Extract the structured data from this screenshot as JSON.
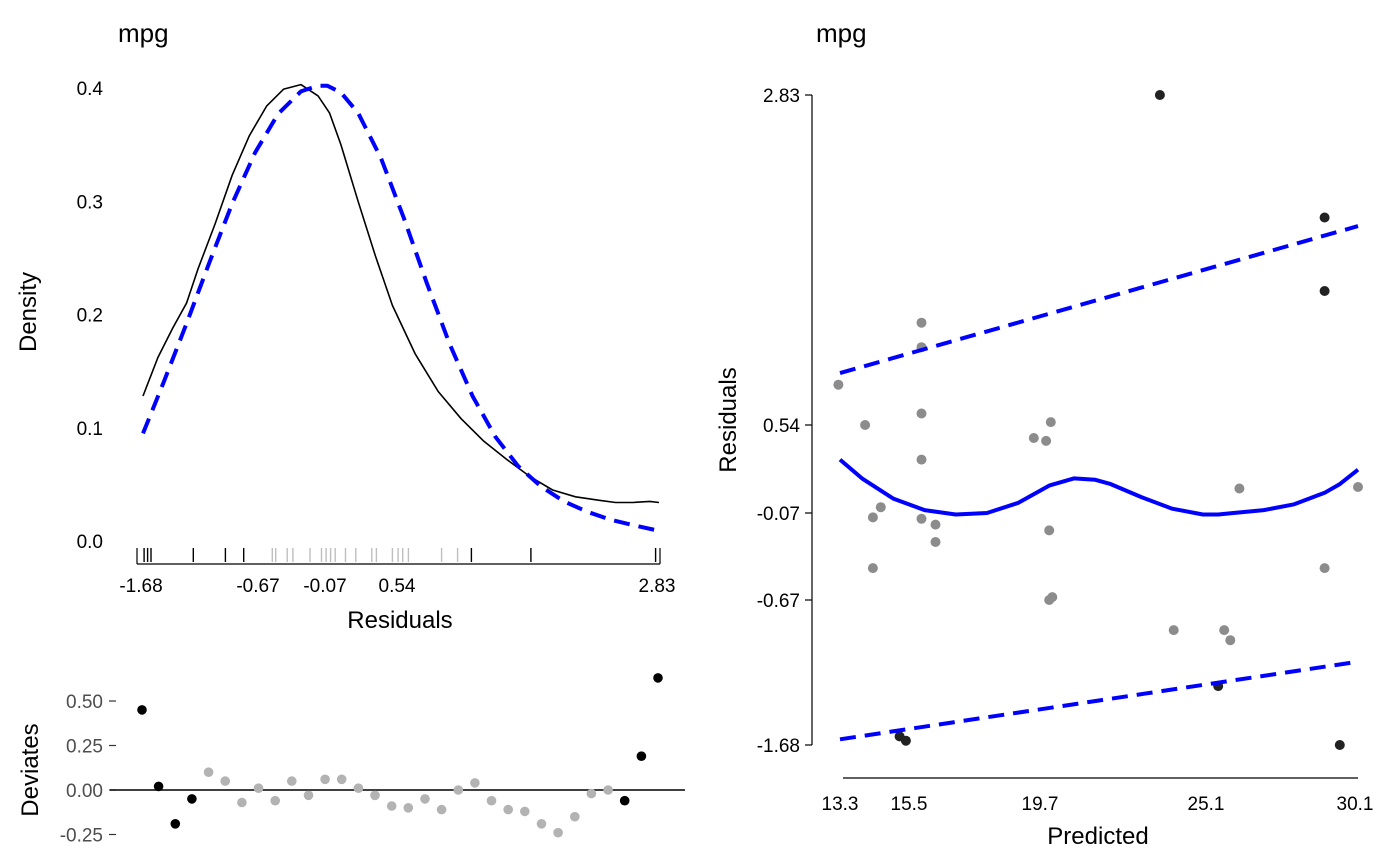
{
  "chart_data": [
    {
      "panel": "density",
      "type": "line",
      "title": "mpg",
      "xlabel": "Residuals",
      "ylabel": "Density",
      "xlim": [
        -1.68,
        2.83
      ],
      "ylim": [
        0,
        0.4
      ],
      "x_tick_labels": [
        "-1.68",
        "-0.67",
        "-0.07",
        "0.54",
        "2.83"
      ],
      "x_ticks": [
        -1.68,
        -0.67,
        -0.07,
        0.54,
        2.83
      ],
      "y_tick_labels": [
        "0.0",
        "0.1",
        "0.2",
        "0.3",
        "0.4"
      ],
      "y_ticks": [
        0.0,
        0.1,
        0.2,
        0.3,
        0.4
      ],
      "colors": {
        "kde": "#000000",
        "normal": "#0000ff",
        "rug_dark": "#000000",
        "rug_light": "#bfbfbf"
      },
      "series": [
        {
          "kind": "kde",
          "style": "solid",
          "x": [
            -1.68,
            -1.55,
            -1.42,
            -1.3,
            -1.2,
            -1.05,
            -0.9,
            -0.75,
            -0.6,
            -0.45,
            -0.3,
            -0.15,
            -0.05,
            0.05,
            0.2,
            0.35,
            0.5,
            0.7,
            0.9,
            1.1,
            1.3,
            1.5,
            1.7,
            1.9,
            2.1,
            2.3,
            2.45,
            2.6,
            2.75,
            2.83
          ],
          "y": [
            0.128,
            0.162,
            0.188,
            0.21,
            0.24,
            0.28,
            0.323,
            0.358,
            0.384,
            0.399,
            0.403,
            0.393,
            0.378,
            0.35,
            0.3,
            0.252,
            0.208,
            0.165,
            0.132,
            0.108,
            0.088,
            0.072,
            0.057,
            0.045,
            0.039,
            0.036,
            0.034,
            0.034,
            0.035,
            0.034
          ]
        },
        {
          "kind": "normal",
          "style": "dashed",
          "x": [
            -1.68,
            -1.5,
            -1.3,
            -1.1,
            -0.9,
            -0.7,
            -0.5,
            -0.3,
            -0.15,
            -0.07,
            0.05,
            0.2,
            0.4,
            0.6,
            0.8,
            1.0,
            1.2,
            1.4,
            1.6,
            1.8,
            2.0,
            2.2,
            2.4,
            2.6,
            2.83
          ],
          "y": [
            0.095,
            0.14,
            0.192,
            0.246,
            0.298,
            0.343,
            0.377,
            0.397,
            0.402,
            0.402,
            0.396,
            0.378,
            0.338,
            0.285,
            0.228,
            0.174,
            0.128,
            0.092,
            0.066,
            0.048,
            0.035,
            0.026,
            0.019,
            0.014,
            0.009
          ]
        }
      ],
      "rug": [
        {
          "x": -1.67,
          "group": "dark"
        },
        {
          "x": -1.64,
          "group": "dark"
        },
        {
          "x": -1.61,
          "group": "dark"
        },
        {
          "x": -1.24,
          "group": "dark"
        },
        {
          "x": -0.96,
          "group": "dark"
        },
        {
          "x": -0.8,
          "group": "dark"
        },
        {
          "x": -0.55,
          "group": "light"
        },
        {
          "x": -0.52,
          "group": "light"
        },
        {
          "x": -0.42,
          "group": "light"
        },
        {
          "x": -0.37,
          "group": "light"
        },
        {
          "x": -0.22,
          "group": "light"
        },
        {
          "x": -0.12,
          "group": "light"
        },
        {
          "x": -0.08,
          "group": "light"
        },
        {
          "x": -0.04,
          "group": "light"
        },
        {
          "x": 0.0,
          "group": "light"
        },
        {
          "x": 0.09,
          "group": "light"
        },
        {
          "x": 0.18,
          "group": "light"
        },
        {
          "x": 0.32,
          "group": "light"
        },
        {
          "x": 0.36,
          "group": "light"
        },
        {
          "x": 0.5,
          "group": "light"
        },
        {
          "x": 0.55,
          "group": "light"
        },
        {
          "x": 0.59,
          "group": "light"
        },
        {
          "x": 0.64,
          "group": "light"
        },
        {
          "x": 0.93,
          "group": "light"
        },
        {
          "x": 1.07,
          "group": "light"
        },
        {
          "x": 1.19,
          "group": "dark"
        },
        {
          "x": 1.71,
          "group": "dark"
        },
        {
          "x": 2.8,
          "group": "dark"
        }
      ]
    },
    {
      "panel": "residuals_vs_predicted",
      "type": "scatter",
      "title": "mpg",
      "xlabel": "Predicted",
      "ylabel": "Residuals",
      "xlim": [
        13.3,
        30.1
      ],
      "ylim": [
        -1.68,
        2.83
      ],
      "x_tick_labels": [
        "13.3",
        "15.5",
        "19.7",
        "25.1",
        "30.1"
      ],
      "x_ticks": [
        13.3,
        15.5,
        19.7,
        25.1,
        30.1
      ],
      "y_tick_labels": [
        "2.83",
        "0.54",
        "-0.07",
        "-0.67",
        "-1.68"
      ],
      "y_ticks": [
        2.83,
        0.54,
        -0.07,
        -0.67,
        -1.68
      ],
      "colors": {
        "point_dark": "#222222",
        "point_light": "#8c8c8c",
        "fit": "#0000ff",
        "bounds": "#0000ff"
      },
      "points": [
        {
          "x": 13.25,
          "y": 0.82,
          "group": "light"
        },
        {
          "x": 14.1,
          "y": 0.54,
          "group": "light"
        },
        {
          "x": 14.35,
          "y": -0.1,
          "group": "light"
        },
        {
          "x": 14.35,
          "y": -0.45,
          "group": "light"
        },
        {
          "x": 14.6,
          "y": -0.03,
          "group": "light"
        },
        {
          "x": 15.2,
          "y": -1.62,
          "group": "dark"
        },
        {
          "x": 15.4,
          "y": -1.65,
          "group": "dark"
        },
        {
          "x": 15.9,
          "y": 1.25,
          "group": "light"
        },
        {
          "x": 15.9,
          "y": 1.08,
          "group": "light"
        },
        {
          "x": 15.9,
          "y": 0.62,
          "group": "light"
        },
        {
          "x": 15.9,
          "y": 0.3,
          "group": "light"
        },
        {
          "x": 15.9,
          "y": -0.11,
          "group": "light"
        },
        {
          "x": 16.35,
          "y": -0.15,
          "group": "light"
        },
        {
          "x": 16.35,
          "y": -0.27,
          "group": "light"
        },
        {
          "x": 19.5,
          "y": 0.45,
          "group": "light"
        },
        {
          "x": 19.9,
          "y": 0.43,
          "group": "light"
        },
        {
          "x": 20.05,
          "y": 0.56,
          "group": "light"
        },
        {
          "x": 20.0,
          "y": -0.19,
          "group": "light"
        },
        {
          "x": 20.0,
          "y": -0.67,
          "group": "light"
        },
        {
          "x": 20.1,
          "y": -0.65,
          "group": "light"
        },
        {
          "x": 23.6,
          "y": 2.83,
          "group": "dark"
        },
        {
          "x": 24.05,
          "y": -0.88,
          "group": "light"
        },
        {
          "x": 25.7,
          "y": -0.88,
          "group": "light"
        },
        {
          "x": 25.9,
          "y": -0.95,
          "group": "light"
        },
        {
          "x": 25.5,
          "y": -1.27,
          "group": "dark"
        },
        {
          "x": 26.2,
          "y": 0.1,
          "group": "light"
        },
        {
          "x": 29.0,
          "y": 1.98,
          "group": "dark"
        },
        {
          "x": 29.0,
          "y": 1.47,
          "group": "dark"
        },
        {
          "x": 29.0,
          "y": -0.45,
          "group": "light"
        },
        {
          "x": 29.5,
          "y": -1.68,
          "group": "dark"
        },
        {
          "x": 30.1,
          "y": 0.11,
          "group": "light"
        }
      ],
      "fit_line": {
        "x": [
          13.3,
          14.0,
          15.0,
          16.0,
          17.0,
          18.0,
          19.0,
          20.0,
          20.8,
          21.5,
          22.0,
          23.0,
          24.0,
          25.0,
          25.5,
          26.0,
          27.0,
          28.0,
          29.0,
          29.5,
          30.1
        ],
        "y": [
          0.3,
          0.17,
          0.03,
          -0.05,
          -0.08,
          -0.07,
          0.0,
          0.12,
          0.17,
          0.16,
          0.13,
          0.04,
          -0.04,
          -0.08,
          -0.08,
          -0.07,
          -0.05,
          -0.01,
          0.07,
          0.13,
          0.23
        ]
      },
      "bounds": {
        "upper": {
          "x": [
            13.3,
            30.1
          ],
          "y": [
            0.9,
            1.92
          ]
        },
        "lower": {
          "x": [
            13.3,
            30.1
          ],
          "y": [
            -1.64,
            -1.1
          ]
        }
      }
    },
    {
      "panel": "deviates",
      "type": "scatter",
      "title": "",
      "xlabel": "",
      "ylabel": "Deviates",
      "ylim": [
        -0.3,
        0.68
      ],
      "y_tick_labels": [
        "0.50",
        "0.25",
        "0.00",
        "-0.25"
      ],
      "y_ticks": [
        0.5,
        0.25,
        0.0,
        -0.25
      ],
      "colors": {
        "point_dark": "#000000",
        "point_light": "#b3b3b3",
        "zero_line": "#000000"
      },
      "points": [
        {
          "x": 1,
          "y": 0.45,
          "group": "dark"
        },
        {
          "x": 2,
          "y": 0.02,
          "group": "dark"
        },
        {
          "x": 3,
          "y": -0.19,
          "group": "dark"
        },
        {
          "x": 4,
          "y": -0.05,
          "group": "dark"
        },
        {
          "x": 5,
          "y": 0.1,
          "group": "light"
        },
        {
          "x": 6,
          "y": 0.05,
          "group": "light"
        },
        {
          "x": 7,
          "y": -0.07,
          "group": "light"
        },
        {
          "x": 8,
          "y": 0.01,
          "group": "light"
        },
        {
          "x": 9,
          "y": -0.06,
          "group": "light"
        },
        {
          "x": 10,
          "y": 0.05,
          "group": "light"
        },
        {
          "x": 11,
          "y": -0.03,
          "group": "light"
        },
        {
          "x": 12,
          "y": 0.06,
          "group": "light"
        },
        {
          "x": 13,
          "y": 0.06,
          "group": "light"
        },
        {
          "x": 14,
          "y": 0.01,
          "group": "light"
        },
        {
          "x": 15,
          "y": -0.03,
          "group": "light"
        },
        {
          "x": 16,
          "y": -0.09,
          "group": "light"
        },
        {
          "x": 17,
          "y": -0.1,
          "group": "light"
        },
        {
          "x": 18,
          "y": -0.05,
          "group": "light"
        },
        {
          "x": 19,
          "y": -0.11,
          "group": "light"
        },
        {
          "x": 20,
          "y": 0.0,
          "group": "light"
        },
        {
          "x": 21,
          "y": 0.04,
          "group": "light"
        },
        {
          "x": 22,
          "y": -0.06,
          "group": "light"
        },
        {
          "x": 23,
          "y": -0.11,
          "group": "light"
        },
        {
          "x": 24,
          "y": -0.12,
          "group": "light"
        },
        {
          "x": 25,
          "y": -0.19,
          "group": "light"
        },
        {
          "x": 26,
          "y": -0.24,
          "group": "light"
        },
        {
          "x": 27,
          "y": -0.15,
          "group": "light"
        },
        {
          "x": 28,
          "y": -0.02,
          "group": "light"
        },
        {
          "x": 29,
          "y": 0.0,
          "group": "light"
        },
        {
          "x": 30,
          "y": -0.06,
          "group": "dark"
        },
        {
          "x": 31,
          "y": 0.19,
          "group": "dark"
        },
        {
          "x": 32,
          "y": 0.63,
          "group": "dark"
        }
      ]
    }
  ]
}
